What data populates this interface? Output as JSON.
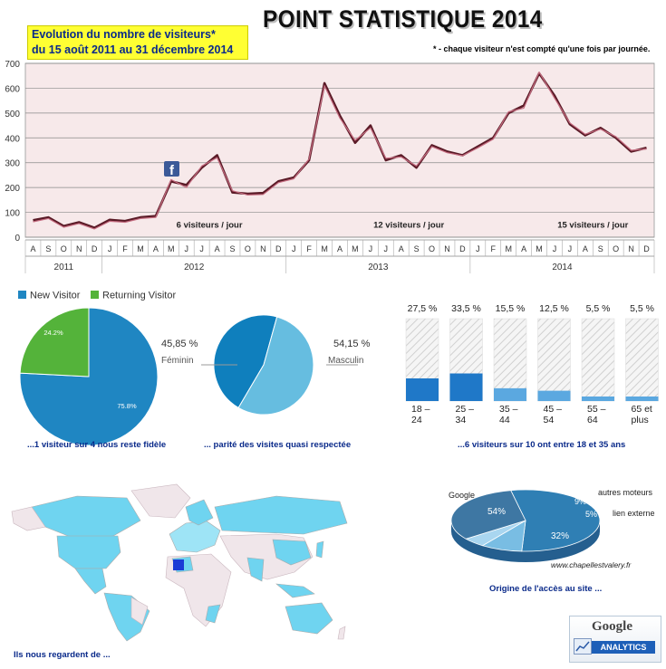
{
  "header": {
    "title": "POINT STATISTIQUE 2014",
    "subtitle_line1": "Evolution du nombre de visiteurs*",
    "subtitle_line2": "du 15 août 2011 au 31 décembre 2014",
    "footnote": "* - chaque visiteur n'est compté qu'une fois par journée."
  },
  "chart_data": [
    {
      "type": "line",
      "title": "Evolution du nombre de visiteurs*",
      "ylim": [
        0,
        700
      ],
      "yticks": [
        0,
        100,
        200,
        300,
        400,
        500,
        600,
        700
      ],
      "x": [
        "2011-08",
        "2011-09",
        "2011-10",
        "2011-11",
        "2011-12",
        "2012-01",
        "2012-02",
        "2012-03",
        "2012-04",
        "2012-05",
        "2012-06",
        "2012-07",
        "2012-08",
        "2012-09",
        "2012-10",
        "2012-11",
        "2012-12",
        "2013-01",
        "2013-02",
        "2013-03",
        "2013-04",
        "2013-05",
        "2013-06",
        "2013-07",
        "2013-08",
        "2013-09",
        "2013-10",
        "2013-11",
        "2013-12",
        "2014-01",
        "2014-02",
        "2014-03",
        "2014-04",
        "2014-05",
        "2014-06",
        "2014-07",
        "2014-08",
        "2014-09",
        "2014-10",
        "2014-11",
        "2014-12"
      ],
      "month_labels": [
        "A",
        "S",
        "O",
        "N",
        "D",
        "J",
        "F",
        "M",
        "A",
        "M",
        "J",
        "J",
        "A",
        "S",
        "O",
        "N",
        "D",
        "J",
        "F",
        "M",
        "A",
        "M",
        "J",
        "J",
        "A",
        "S",
        "O",
        "N",
        "D",
        "J",
        "F",
        "M",
        "A",
        "M",
        "J",
        "J",
        "A",
        "S",
        "O",
        "N",
        "D"
      ],
      "year_labels": [
        "2011",
        "2012",
        "2013",
        "2014"
      ],
      "series": [
        {
          "values": [
            68,
            80,
            45,
            60,
            38,
            70,
            65,
            80,
            85,
            225,
            210,
            280,
            330,
            180,
            175,
            178,
            225,
            240,
            310,
            620,
            490,
            380,
            450,
            310,
            330,
            280,
            370,
            345,
            330,
            365,
            400,
            500,
            530,
            660,
            570,
            455,
            410,
            440,
            400,
            345,
            360
          ]
        },
        {
          "values": [
            62,
            75,
            40,
            55,
            33,
            64,
            60,
            75,
            80,
            232,
            200,
            287,
            320,
            187,
            170,
            172,
            220,
            235,
            315,
            610,
            480,
            390,
            440,
            318,
            323,
            287,
            365,
            340,
            328,
            360,
            395,
            505,
            520,
            665,
            560,
            460,
            415,
            435,
            405,
            350,
            355
          ]
        }
      ],
      "annotations": [
        "6 visiteurs / jour",
        "12 visiteurs / jour",
        "15 visiteurs / jour"
      ],
      "grid": true
    },
    {
      "type": "pie",
      "labels": [
        "New Visitor",
        "Returning Visitor"
      ],
      "values": [
        75.8,
        24.2
      ],
      "slice_labels": [
        "75.8%",
        "24.2%"
      ],
      "colors": [
        "#1f86c2",
        "#54b33a"
      ],
      "legend": "top",
      "caption": "...1 visiteur sur 4 nous reste fidèle"
    },
    {
      "type": "pie",
      "labels": [
        "Féminin",
        "Masculin"
      ],
      "values": [
        45.85,
        54.15
      ],
      "value_labels": [
        "45,85 %",
        "54,15 %"
      ],
      "colors": [
        "#0f7fbd",
        "#66bde0"
      ],
      "caption": "... parité des visites quasi respectée"
    },
    {
      "type": "bar",
      "categories": [
        "18 – 24",
        "25 – 34",
        "35 – 44",
        "45 – 54",
        "55 – 64",
        "65 et plus"
      ],
      "values": [
        27.5,
        33.5,
        15.5,
        12.5,
        5.5,
        5.5
      ],
      "value_labels": [
        "27,5 %",
        "33,5 %",
        "15,5 %",
        "12,5 %",
        "5,5 %",
        "5,5 %"
      ],
      "ylim": [
        0,
        100
      ],
      "caption": "...6 visiteurs sur 10 ont entre 18 et 35 ans"
    },
    {
      "type": "pie",
      "labels": [
        "Google",
        "autres moteurs",
        "lien externe",
        "www.chapellestvalery.fr"
      ],
      "values": [
        54,
        9,
        5,
        32
      ],
      "slice_labels": [
        "54%",
        "9%",
        "5%",
        "32%"
      ],
      "colors": [
        "#2f7fb4",
        "#79bde3",
        "#a9d6f0",
        "#3e77a3"
      ],
      "caption": "Origine de l'accès au site ..."
    }
  ],
  "map": {
    "caption": "Ils nous regardent de ..."
  },
  "analytics_badge": {
    "logo_text": "Google",
    "label": "ANALYTICS"
  }
}
